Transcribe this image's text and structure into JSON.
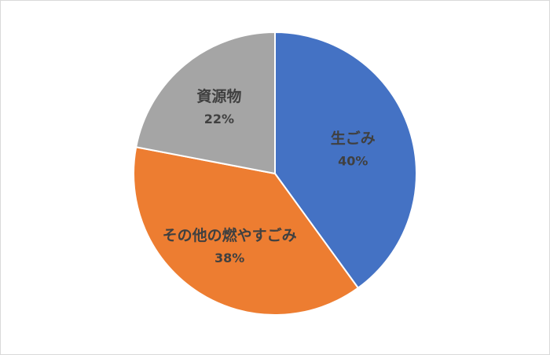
{
  "chart_data": {
    "type": "pie",
    "title": "",
    "start_angle_deg": 0,
    "direction": "clockwise",
    "slices": [
      {
        "label": "生ごみ",
        "value": 40,
        "value_label": "40%",
        "color": "#4472c4"
      },
      {
        "label": "その他の燃やすごみ",
        "value": 38,
        "value_label": "38%",
        "color": "#ed7d31"
      },
      {
        "label": "資源物",
        "value": 22,
        "value_label": "22%",
        "color": "#a5a5a5"
      }
    ],
    "legend": "none",
    "data_labels": "inside"
  }
}
